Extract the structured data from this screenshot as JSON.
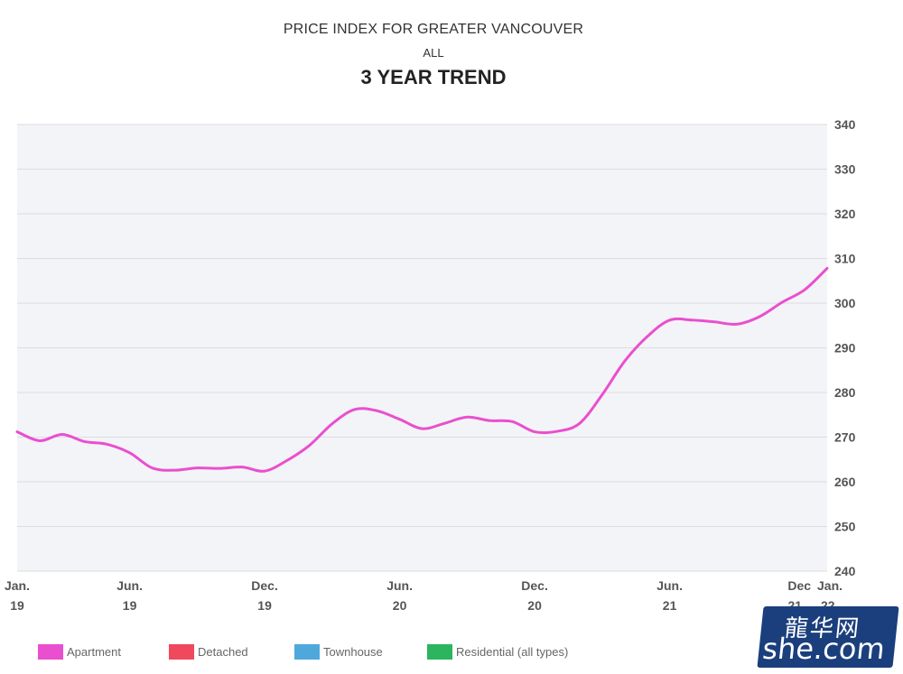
{
  "header": {
    "title": "PRICE INDEX FOR GREATER VANCOUVER",
    "subtitle": "ALL",
    "heading": "3 YEAR TREND"
  },
  "legend": [
    {
      "label": "Apartment",
      "color": "#e94fcf"
    },
    {
      "label": "Detached",
      "color": "#f0485c"
    },
    {
      "label": "Townhouse",
      "color": "#4fa8dc"
    },
    {
      "label": "Residential (all types)",
      "color": "#2bb55e"
    }
  ],
  "watermark": {
    "line1": "龍华网",
    "line2": "she.com"
  },
  "chart_data": {
    "type": "line",
    "title": "3 YEAR TREND",
    "xlabel": "",
    "ylabel": "",
    "ylim": [
      240,
      340
    ],
    "yticks": [
      240,
      250,
      260,
      270,
      280,
      290,
      300,
      310,
      320,
      330,
      340
    ],
    "y_axis_side": "right",
    "grid": true,
    "legend_position": "bottom",
    "x_tick_labels": [
      {
        "month": "2019-01",
        "line1": "Jan.",
        "line2": "19"
      },
      {
        "month": "2019-06",
        "line1": "Jun.",
        "line2": "19"
      },
      {
        "month": "2019-12",
        "line1": "Dec.",
        "line2": "19"
      },
      {
        "month": "2020-06",
        "line1": "Jun.",
        "line2": "20"
      },
      {
        "month": "2020-12",
        "line1": "Dec.",
        "line2": "20"
      },
      {
        "month": "2021-06",
        "line1": "Jun.",
        "line2": "21"
      },
      {
        "month": "2021-12",
        "line1": "Dec",
        "line2": "21"
      },
      {
        "month": "2022-01",
        "line1": "Jan.",
        "line2": "22"
      }
    ],
    "x": [
      "2019-01",
      "2019-02",
      "2019-03",
      "2019-04",
      "2019-05",
      "2019-06",
      "2019-07",
      "2019-08",
      "2019-09",
      "2019-10",
      "2019-11",
      "2019-12",
      "2020-01",
      "2020-02",
      "2020-03",
      "2020-04",
      "2020-05",
      "2020-06",
      "2020-07",
      "2020-08",
      "2020-09",
      "2020-10",
      "2020-11",
      "2020-12",
      "2021-01",
      "2021-02",
      "2021-03",
      "2021-04",
      "2021-05",
      "2021-06",
      "2021-07",
      "2021-08",
      "2021-09",
      "2021-10",
      "2021-11",
      "2021-12",
      "2022-01"
    ],
    "series": [
      {
        "name": "Apartment",
        "color": "#e94fcf",
        "values": [
          271.2,
          269.2,
          270.6,
          269.0,
          268.4,
          266.5,
          263.1,
          262.6,
          263.1,
          263.0,
          263.3,
          262.4,
          264.8,
          268.2,
          273.0,
          276.2,
          275.9,
          274.0,
          271.9,
          273.1,
          274.5,
          273.7,
          273.5,
          271.2,
          271.3,
          273.1,
          279.5,
          287.0,
          292.5,
          296.2,
          296.2,
          295.8,
          295.3,
          297.0,
          300.2,
          303.0,
          307.8
        ]
      }
    ]
  }
}
